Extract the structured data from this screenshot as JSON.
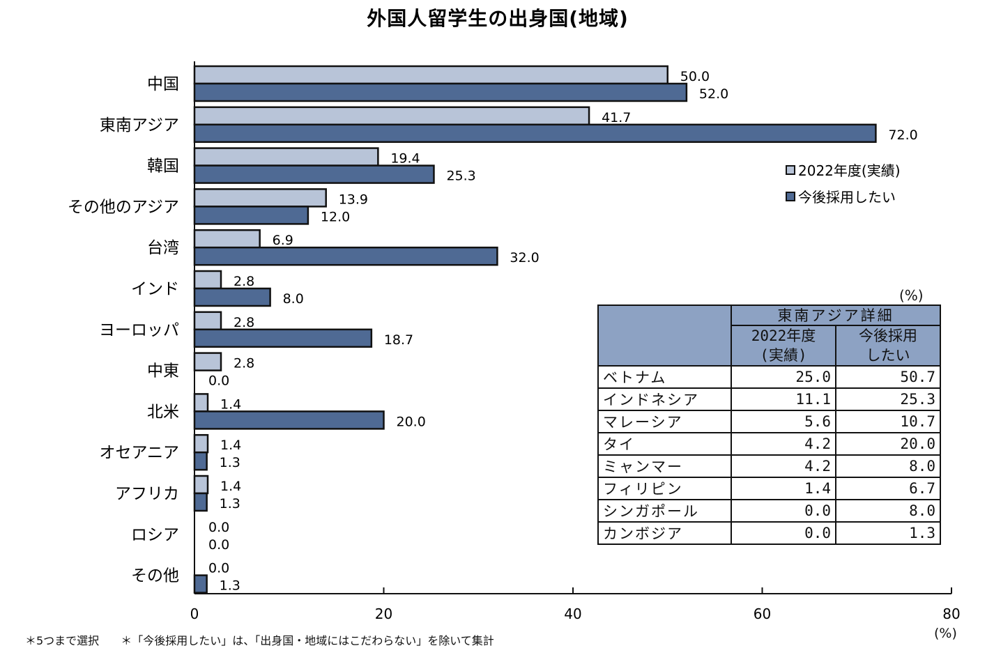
{
  "chart_data": {
    "type": "bar",
    "orientation": "horizontal",
    "title": "外国人留学生の出身国(地域)",
    "categories": [
      "中国",
      "東南アジア",
      "韓国",
      "その他のアジア",
      "台湾",
      "インド",
      "ヨーロッパ",
      "中東",
      "北米",
      "オセアニア",
      "アフリカ",
      "ロシア",
      "その他"
    ],
    "series": [
      {
        "name": "2022年度(実績)",
        "color": "#b8c4d8",
        "values": [
          50.0,
          41.7,
          19.4,
          13.9,
          6.9,
          2.8,
          2.8,
          2.8,
          1.4,
          1.4,
          1.4,
          0.0,
          0.0
        ]
      },
      {
        "name": "今後採用したい",
        "color": "#4f6a94",
        "values": [
          52.0,
          72.0,
          25.3,
          12.0,
          32.0,
          8.0,
          18.7,
          0.0,
          20.0,
          1.3,
          1.3,
          0.0,
          1.3
        ]
      }
    ],
    "xlim": [
      0,
      80
    ],
    "xticks": [
      0,
      20,
      40,
      60,
      80
    ],
    "xlabel": "(%)",
    "legend_position": "right",
    "grid": false
  },
  "table": {
    "unit": "(%)",
    "header_group": "東南アジア詳細",
    "col1": "2022年度\n(実績)",
    "col2": "今後採用\nしたい",
    "rows": [
      {
        "name": "ベトナム",
        "a": "25.0",
        "b": "50.7"
      },
      {
        "name": "インドネシア",
        "a": "11.1",
        "b": "25.3"
      },
      {
        "name": "マレーシア",
        "a": "5.6",
        "b": "10.7"
      },
      {
        "name": "タイ",
        "a": "4.2",
        "b": "20.0"
      },
      {
        "name": "ミャンマー",
        "a": "4.2",
        "b": "8.0"
      },
      {
        "name": "フィリピン",
        "a": "1.4",
        "b": "6.7"
      },
      {
        "name": "シンガポール",
        "a": "0.0",
        "b": "8.0"
      },
      {
        "name": "カンボジア",
        "a": "0.0",
        "b": "1.3"
      }
    ]
  },
  "notes": {
    "note1": "＊5つまで選択",
    "note2": "＊「今後採用したい」は、「出身国・地域にはこだわらない」を除いて集計"
  }
}
